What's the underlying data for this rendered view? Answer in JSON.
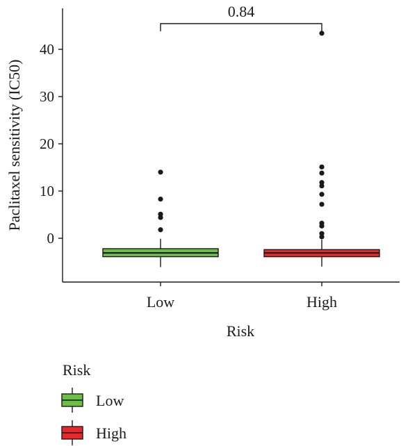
{
  "chart_data": {
    "type": "box",
    "title": "",
    "xlabel": "Risk",
    "ylabel": "Paclitaxel sensitivity (IC50)",
    "categories": [
      "Low",
      "High"
    ],
    "ylim": [
      -8,
      46
    ],
    "yticks": [
      0,
      10,
      20,
      30,
      40
    ],
    "grid": false,
    "legend": {
      "title": "Risk",
      "placement": "bottom-left"
    },
    "annotation": {
      "label": "0.84",
      "between": [
        "Low",
        "High"
      ]
    },
    "series": [
      {
        "name": "Low",
        "color": "#6cbd45",
        "box": {
          "whisker_low": -6.1,
          "q1": -3.9,
          "median": -3.1,
          "q3": -2.2,
          "whisker_high": -0.1
        },
        "outliers": [
          1.8,
          4.4,
          5.1,
          8.3,
          14.0
        ]
      },
      {
        "name": "High",
        "color": "#e8282b",
        "box": {
          "whisker_low": -6.0,
          "q1": -3.9,
          "median": -3.1,
          "q3": -2.4,
          "whisker_high": -0.3
        },
        "outliers": [
          0.3,
          1.0,
          2.6,
          3.2,
          7.2,
          9.3,
          11.1,
          11.8,
          13.8,
          15.1,
          43.4
        ]
      }
    ]
  }
}
